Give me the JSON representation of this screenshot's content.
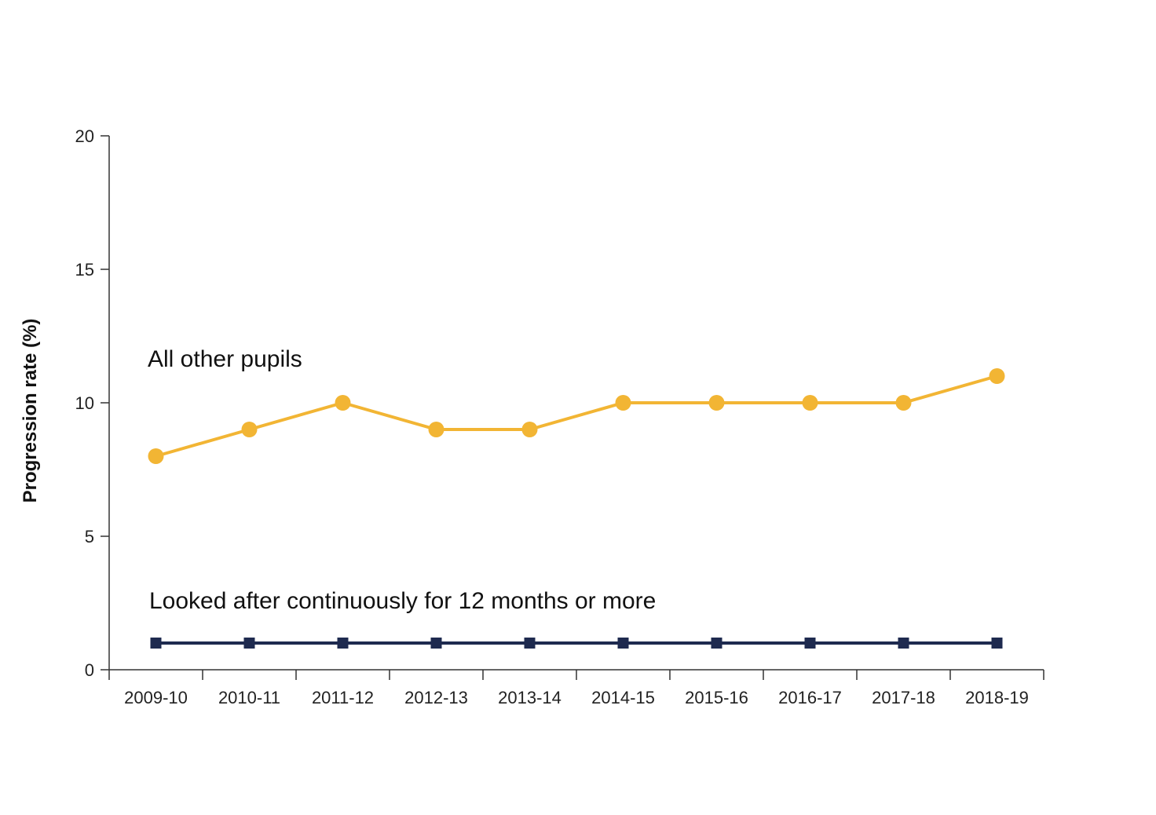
{
  "chart_data": {
    "type": "line",
    "title": "",
    "xlabel": "",
    "ylabel": "Progression rate (%)",
    "categories": [
      "2009-10",
      "2010-11",
      "2011-12",
      "2012-13",
      "2013-14",
      "2014-15",
      "2015-16",
      "2016-17",
      "2017-18",
      "2018-19"
    ],
    "ylim": [
      0,
      20
    ],
    "yticks": [
      0,
      5,
      10,
      15,
      20
    ],
    "grid": false,
    "legend": "inline labels",
    "series": [
      {
        "name": "All other pupils",
        "values": [
          8,
          9,
          10,
          9,
          9,
          10,
          10,
          10,
          10,
          11
        ],
        "color": "#F2B534",
        "marker": "circle"
      },
      {
        "name": "Looked after continuously for 12 months or more",
        "values": [
          1,
          1,
          1,
          1,
          1,
          1,
          1,
          1,
          1,
          1
        ],
        "color": "#1E2A4F",
        "marker": "square"
      }
    ]
  }
}
